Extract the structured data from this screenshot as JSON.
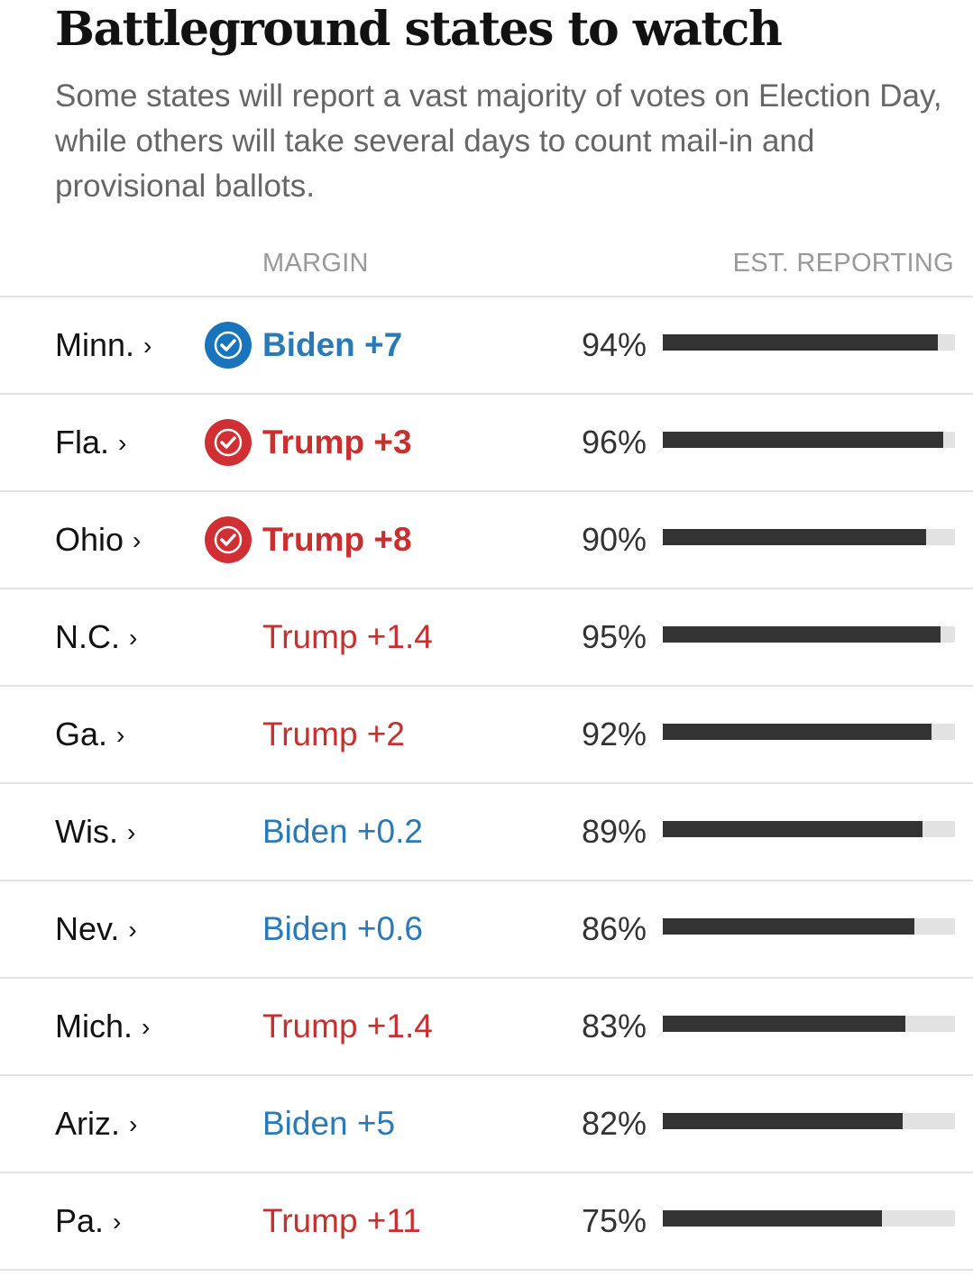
{
  "header": {
    "title": "Battleground states to watch",
    "subtitle": "Some states will report a vast majority of votes on Election Day, while others will take several days to count mail-in and provisional ballots."
  },
  "columns": {
    "margin": "MARGIN",
    "reporting": "EST. REPORTING"
  },
  "colors": {
    "biden": "#2a7ab8",
    "biden_check": "#1a74bb",
    "trump": "#c7302f",
    "trump_check": "#d03034",
    "bar_fill": "#333333",
    "bar_track": "#e2e2e2"
  },
  "rows": [
    {
      "state": "Minn.",
      "chevron": "›",
      "margin": "Biden +7",
      "party": "biden",
      "called": true,
      "reporting_label": "94%",
      "reporting": 94
    },
    {
      "state": "Fla.",
      "chevron": "›",
      "margin": "Trump +3",
      "party": "trump",
      "called": true,
      "reporting_label": "96%",
      "reporting": 96
    },
    {
      "state": "Ohio",
      "chevron": "›",
      "margin": "Trump +8",
      "party": "trump",
      "called": true,
      "reporting_label": "90%",
      "reporting": 90
    },
    {
      "state": "N.C.",
      "chevron": "›",
      "margin": "Trump +1.4",
      "party": "trump",
      "called": false,
      "reporting_label": "95%",
      "reporting": 95
    },
    {
      "state": "Ga.",
      "chevron": "›",
      "margin": "Trump +2",
      "party": "trump",
      "called": false,
      "reporting_label": "92%",
      "reporting": 92
    },
    {
      "state": "Wis.",
      "chevron": "›",
      "margin": "Biden +0.2",
      "party": "biden",
      "called": false,
      "reporting_label": "89%",
      "reporting": 89
    },
    {
      "state": "Nev.",
      "chevron": "›",
      "margin": "Biden +0.6",
      "party": "biden",
      "called": false,
      "reporting_label": "86%",
      "reporting": 86
    },
    {
      "state": "Mich.",
      "chevron": "›",
      "margin": "Trump +1.4",
      "party": "trump",
      "called": false,
      "reporting_label": "83%",
      "reporting": 83
    },
    {
      "state": "Ariz.",
      "chevron": "›",
      "margin": "Biden +5",
      "party": "biden",
      "called": false,
      "reporting_label": "82%",
      "reporting": 82
    },
    {
      "state": "Pa.",
      "chevron": "›",
      "margin": "Trump +11",
      "party": "trump",
      "called": false,
      "reporting_label": "75%",
      "reporting": 75
    }
  ]
}
